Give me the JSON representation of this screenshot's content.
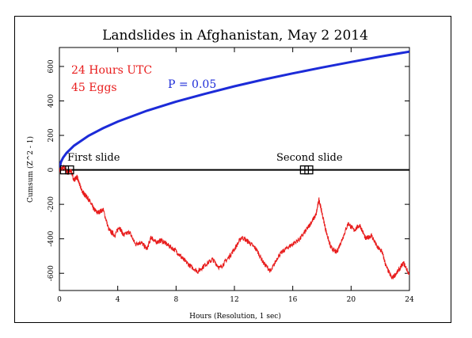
{
  "chart_data": {
    "type": "line",
    "title": "Landslides in Afghanistan, May 2 2014",
    "xlabel": "Hours (Resolution, 1 sec)",
    "ylabel": "Cumsum (Z^2 - 1)",
    "xlim": [
      0,
      24
    ],
    "ylim": [
      -700,
      710
    ],
    "xticks": [
      0,
      4,
      8,
      12,
      16,
      20,
      24
    ],
    "yticks": [
      -600,
      -400,
      -200,
      0,
      200,
      400,
      600
    ],
    "grid": false,
    "annotations": {
      "time_window": "24 Hours UTC",
      "eggs": "45 Eggs",
      "probability": "P = 0.05",
      "first_event": "First slide",
      "second_event": "Second slide"
    },
    "event_markers": [
      {
        "label": "First slide",
        "x": [
          0.35,
          0.7
        ],
        "y": 0
      },
      {
        "label": "Second slide",
        "x": [
          16.8,
          17.1
        ],
        "y": 0
      }
    ],
    "colors": {
      "cumsum": "#e81c1c",
      "probability_envelope": "#1c2bd8",
      "zero_line": "#000000",
      "annotation_red": "#e81c1c",
      "annotation_blue": "#1c2bd8"
    },
    "series": [
      {
        "name": "P = 0.05",
        "role": "probability envelope",
        "x": [
          0,
          0.1,
          0.25,
          0.5,
          1,
          2,
          3,
          4,
          6,
          8,
          10,
          12,
          14,
          16,
          18,
          20,
          22,
          24
        ],
        "y": [
          0,
          44,
          70,
          99,
          140,
          198,
          242,
          280,
          343,
          396,
          442,
          485,
          524,
          560,
          594,
          626,
          657,
          686
        ]
      },
      {
        "name": "Cumsum",
        "role": "network variance",
        "x": [
          0,
          0.3,
          0.6,
          0.8,
          1.0,
          1.2,
          1.4,
          1.6,
          1.8,
          2.0,
          2.3,
          2.6,
          3.0,
          3.4,
          3.8,
          4.1,
          4.4,
          4.8,
          5.2,
          5.6,
          6.0,
          6.3,
          6.6,
          7.0,
          7.5,
          8.0,
          8.5,
          9.0,
          9.5,
          10.0,
          10.5,
          11.0,
          11.5,
          12.0,
          12.5,
          13.0,
          13.5,
          14.0,
          14.5,
          15.0,
          15.5,
          16.0,
          16.5,
          17.0,
          17.3,
          17.6,
          17.8,
          18.0,
          18.3,
          18.6,
          19.0,
          19.4,
          19.8,
          20.2,
          20.6,
          21.0,
          21.4,
          21.8,
          22.1,
          22.4,
          22.8,
          23.2,
          23.6,
          24.0
        ],
        "y": [
          0,
          15,
          -20,
          -5,
          -60,
          -40,
          -90,
          -130,
          -150,
          -170,
          -220,
          -250,
          -230,
          -350,
          -380,
          -330,
          -380,
          -360,
          -430,
          -420,
          -460,
          -390,
          -420,
          -410,
          -440,
          -470,
          -520,
          -560,
          -590,
          -550,
          -520,
          -570,
          -520,
          -460,
          -390,
          -420,
          -460,
          -540,
          -590,
          -500,
          -460,
          -430,
          -400,
          -340,
          -300,
          -260,
          -170,
          -250,
          -360,
          -450,
          -480,
          -400,
          -310,
          -350,
          -320,
          -400,
          -380,
          -450,
          -470,
          -560,
          -630,
          -590,
          -540,
          -610
        ]
      }
    ]
  }
}
